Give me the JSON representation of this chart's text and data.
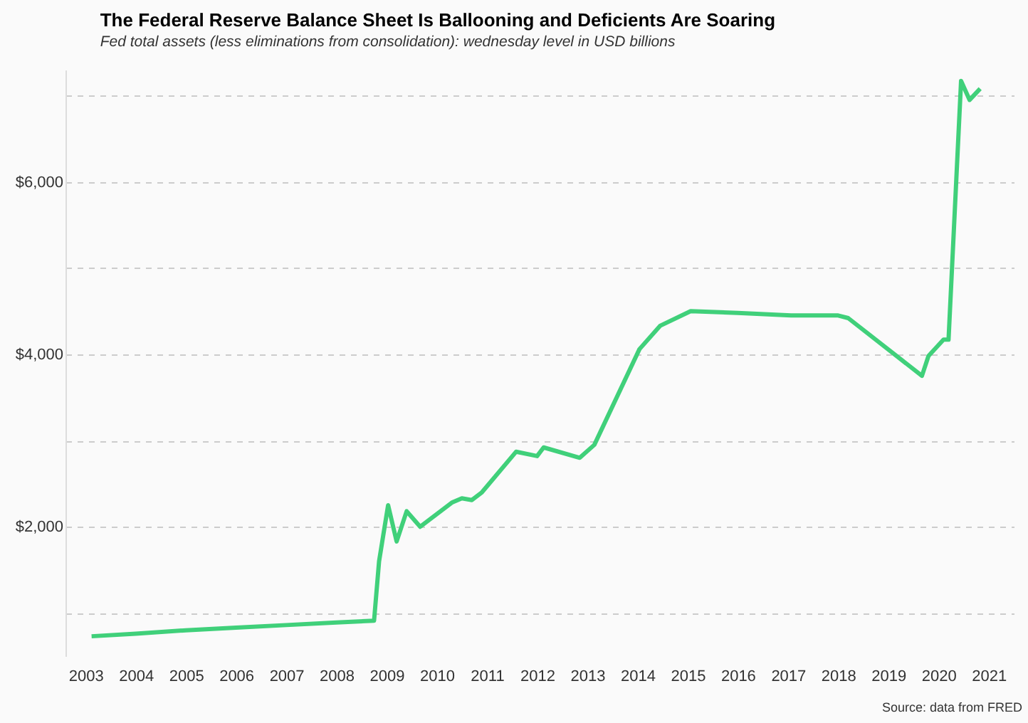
{
  "chart_data": {
    "type": "line",
    "title": "The Federal Reserve Balance Sheet Is Ballooning and Deficients Are Soaring",
    "subtitle": "Fed total assets (less eliminations from consolidation): wednesday level in USD billions",
    "annotations": [
      "Source: data from FRED"
    ],
    "x": [
      2003.12,
      2004.0,
      2005.0,
      2006.0,
      2007.0,
      2008.0,
      2008.75,
      2008.85,
      2009.03,
      2009.2,
      2009.4,
      2009.67,
      2010.3,
      2010.5,
      2010.7,
      2010.9,
      2011.58,
      2012.0,
      2012.13,
      2012.85,
      2013.14,
      2014.04,
      2014.45,
      2015.06,
      2016.0,
      2017.06,
      2018.0,
      2018.2,
      2019.67,
      2019.8,
      2020.1,
      2020.2,
      2020.45,
      2020.62,
      2020.83
    ],
    "series": [
      {
        "color": "#40d07a",
        "values": [
          730,
          760,
          800,
          830,
          860,
          890,
          910,
          1600,
          2250,
          1830,
          2180,
          2000,
          2280,
          2330,
          2310,
          2400,
          2870,
          2820,
          2920,
          2800,
          2950,
          4060,
          4330,
          4500,
          4480,
          4450,
          4450,
          4420,
          3750,
          3980,
          4170,
          4170,
          7170,
          6950,
          7080
        ]
      }
    ],
    "xlim": [
      2002.6,
      2021.5
    ],
    "xticks": [
      2003,
      2004,
      2005,
      2006,
      2007,
      2008,
      2009,
      2010,
      2011,
      2012,
      2013,
      2014,
      2015,
      2016,
      2017,
      2018,
      2019,
      2020,
      2021
    ],
    "ylim": [
      500,
      7300
    ],
    "yticks": [
      {
        "value": 1000,
        "label": null
      },
      {
        "value": 2000,
        "label": "$2,000"
      },
      {
        "value": 3000,
        "label": null
      },
      {
        "value": 4000,
        "label": "$4,000"
      },
      {
        "value": 5000,
        "label": null
      },
      {
        "value": 6000,
        "label": "$6,000"
      },
      {
        "value": 7000,
        "label": null
      }
    ],
    "grid": "y",
    "line_style": "solid"
  }
}
